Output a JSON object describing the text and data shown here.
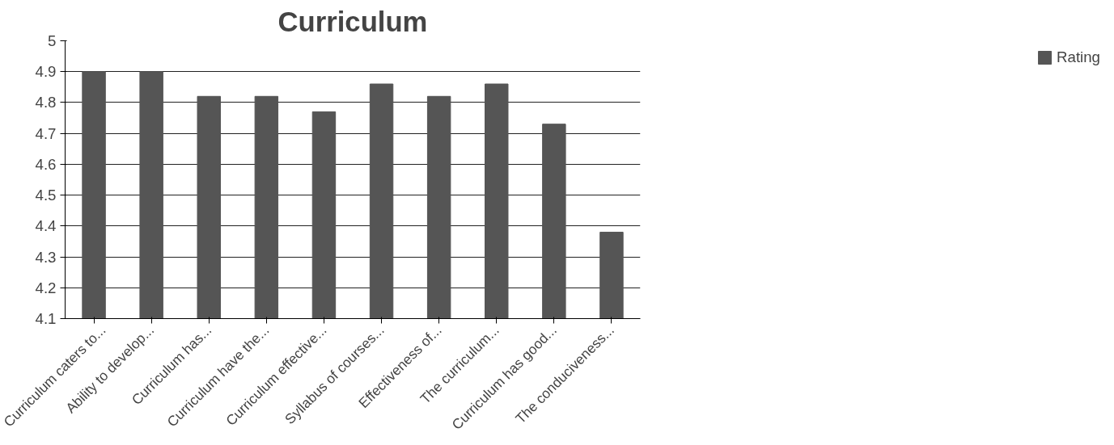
{
  "chart_data": {
    "type": "bar",
    "title": "Curriculum",
    "categories": [
      "Curriculum caters to...",
      "Ability to develop...",
      "Curriculum has...",
      "Curriculum have the...",
      "Curriculum effective...",
      "Syllabus of courses...",
      "Effectiveness of...",
      "The curriculum...",
      "Curriculum has good...",
      "The conduciveness..."
    ],
    "series": [
      {
        "name": "Rating",
        "color": "#555555",
        "values": [
          4.9,
          4.9,
          4.82,
          4.82,
          4.77,
          4.86,
          4.82,
          4.86,
          4.73,
          4.38
        ]
      }
    ],
    "ylim": [
      4.1,
      5
    ],
    "yticks": [
      4.1,
      4.2,
      4.3,
      4.4,
      4.5,
      4.6,
      4.7,
      4.8,
      4.9,
      5
    ],
    "grid": "y",
    "legend": "right"
  }
}
